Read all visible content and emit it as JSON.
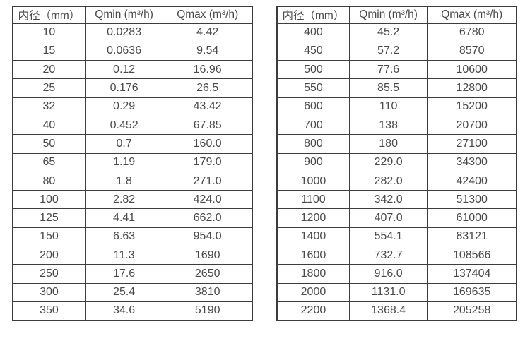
{
  "page": {
    "background": "#ffffff",
    "border_color": "#3d3d3d",
    "text_color": "#4a4a4a"
  },
  "tables": [
    {
      "name": "flow-rate-table-small-diameters",
      "headers": [
        "内径（mm）",
        "Qmin (m³/h)",
        "Qmax (m³/h)"
      ],
      "rows": [
        [
          "10",
          "0.0283",
          "4.42"
        ],
        [
          "15",
          "0.0636",
          "9.54"
        ],
        [
          "20",
          "0.12",
          "16.96"
        ],
        [
          "25",
          "0.176",
          "26.5"
        ],
        [
          "32",
          "0.29",
          "43.42"
        ],
        [
          "40",
          "0.452",
          "67.85"
        ],
        [
          "50",
          "0.7",
          "160.0"
        ],
        [
          "65",
          "1.19",
          "179.0"
        ],
        [
          "80",
          "1.8",
          "271.0"
        ],
        [
          "100",
          "2.82",
          "424.0"
        ],
        [
          "125",
          "4.41",
          "662.0"
        ],
        [
          "150",
          "6.63",
          "954.0"
        ],
        [
          "200",
          "11.3",
          "1690"
        ],
        [
          "250",
          "17.6",
          "2650"
        ],
        [
          "300",
          "25.4",
          "3810"
        ],
        [
          "350",
          "34.6",
          "5190"
        ]
      ]
    },
    {
      "name": "flow-rate-table-large-diameters",
      "headers": [
        "内径（mm）",
        "Qmin (m³/h)",
        "Qmax (m³/h)"
      ],
      "rows": [
        [
          "400",
          "45.2",
          "6780"
        ],
        [
          "450",
          "57.2",
          "8570"
        ],
        [
          "500",
          "77.6",
          "10600"
        ],
        [
          "550",
          "85.5",
          "12800"
        ],
        [
          "600",
          "110",
          "15200"
        ],
        [
          "700",
          "138",
          "20700"
        ],
        [
          "800",
          "180",
          "27100"
        ],
        [
          "900",
          "229.0",
          "34300"
        ],
        [
          "1000",
          "282.0",
          "42400"
        ],
        [
          "1100",
          "342.0",
          "51300"
        ],
        [
          "1200",
          "407.0",
          "61000"
        ],
        [
          "1400",
          "554.1",
          "83121"
        ],
        [
          "1600",
          "732.7",
          "108566"
        ],
        [
          "1800",
          "916.0",
          "137404"
        ],
        [
          "2000",
          "1131.0",
          "169635"
        ],
        [
          "2200",
          "1368.4",
          "205258"
        ]
      ]
    }
  ]
}
